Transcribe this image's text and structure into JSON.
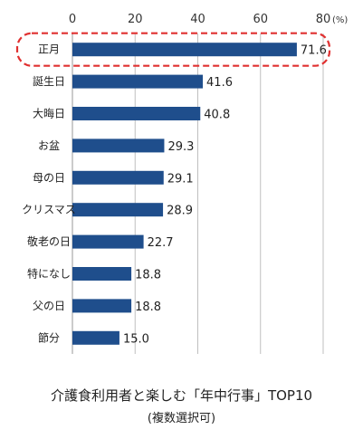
{
  "chart_data": {
    "type": "bar",
    "orientation": "horizontal",
    "categories": [
      "正月",
      "誕生日",
      "大晦日",
      "お盆",
      "母の日",
      "クリスマス",
      "敬老の日",
      "特になし",
      "父の日",
      "節分"
    ],
    "values": [
      71.6,
      41.6,
      40.8,
      29.3,
      29.1,
      28.9,
      22.7,
      18.8,
      18.8,
      15.0
    ],
    "value_labels": [
      "71.6",
      "41.6",
      "40.8",
      "29.3",
      "29.1",
      "28.9",
      "22.7",
      "18.8",
      "18.8",
      "15.0"
    ],
    "xlim": [
      0,
      80
    ],
    "x_ticks": [
      "0",
      "20",
      "40",
      "60",
      "80"
    ],
    "unit": "(%)",
    "grid": "vertical",
    "highlight_category": "正月",
    "colors": {
      "bar": "#1f4e8c",
      "grid": "#bfbfbf",
      "highlight": "#e03030"
    },
    "title": "介護食利用者と楽しむ「年中行事」TOP10",
    "subtitle": "(複数選択可)"
  }
}
